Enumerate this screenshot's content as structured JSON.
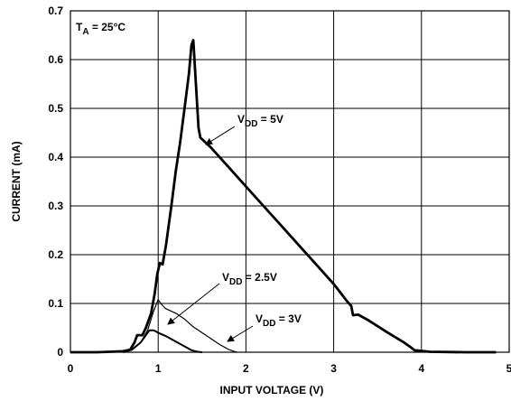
{
  "chart_data": {
    "type": "line",
    "title": "",
    "xlabel": "INPUT VOLTAGE (V)",
    "ylabel": "CURRENT (mA)",
    "xlim": [
      0,
      5
    ],
    "ylim": [
      0,
      0.7
    ],
    "x_ticks": [
      "0",
      "1",
      "2",
      "3",
      "4",
      "5"
    ],
    "y_ticks": [
      "0",
      "0.1",
      "0.2",
      "0.3",
      "0.4",
      "0.5",
      "0.6",
      "0.7"
    ],
    "grid": true,
    "condition_label": {
      "main": "T",
      "sub": "A",
      "rest": " = 25°C"
    },
    "series": [
      {
        "name": "VDD = 5V",
        "label": {
          "main": "V",
          "sub": "DD",
          "rest": " = 5V"
        },
        "stroke": "thick",
        "points": [
          [
            0,
            0
          ],
          [
            0.3,
            0
          ],
          [
            0.6,
            0.002
          ],
          [
            0.68,
            0.005
          ],
          [
            0.73,
            0.02
          ],
          [
            0.76,
            0.035
          ],
          [
            0.82,
            0.035
          ],
          [
            0.86,
            0.05
          ],
          [
            0.92,
            0.08
          ],
          [
            0.96,
            0.12
          ],
          [
            0.99,
            0.16
          ],
          [
            1.02,
            0.183
          ],
          [
            1.05,
            0.18
          ],
          [
            1.09,
            0.22
          ],
          [
            1.15,
            0.3
          ],
          [
            1.2,
            0.37
          ],
          [
            1.25,
            0.43
          ],
          [
            1.3,
            0.5
          ],
          [
            1.35,
            0.57
          ],
          [
            1.38,
            0.63
          ],
          [
            1.4,
            0.64
          ],
          [
            1.43,
            0.55
          ],
          [
            1.46,
            0.46
          ],
          [
            1.48,
            0.44
          ],
          [
            1.6,
            0.42
          ],
          [
            1.8,
            0.38
          ],
          [
            2.0,
            0.34
          ],
          [
            2.2,
            0.3
          ],
          [
            2.4,
            0.26
          ],
          [
            2.6,
            0.22
          ],
          [
            2.8,
            0.18
          ],
          [
            3.0,
            0.14
          ],
          [
            3.15,
            0.105
          ],
          [
            3.2,
            0.095
          ],
          [
            3.22,
            0.076
          ],
          [
            3.28,
            0.077
          ],
          [
            3.4,
            0.065
          ],
          [
            3.6,
            0.042
          ],
          [
            3.8,
            0.02
          ],
          [
            3.88,
            0.01
          ],
          [
            3.92,
            0.004
          ],
          [
            4.1,
            0.001
          ],
          [
            4.5,
            0
          ],
          [
            4.85,
            0
          ]
        ]
      },
      {
        "name": "VDD = 2.5V",
        "label": {
          "main": "V",
          "sub": "DD",
          "rest": " = 2.5V"
        },
        "stroke": "thin",
        "points": [
          [
            0.6,
            0
          ],
          [
            0.7,
            0.005
          ],
          [
            0.8,
            0.02
          ],
          [
            0.88,
            0.045
          ],
          [
            0.95,
            0.085
          ],
          [
            1.0,
            0.108
          ],
          [
            1.03,
            0.1
          ],
          [
            1.08,
            0.09
          ],
          [
            1.2,
            0.08
          ],
          [
            1.3,
            0.068
          ],
          [
            1.4,
            0.052
          ],
          [
            1.5,
            0.04
          ],
          [
            1.6,
            0.028
          ],
          [
            1.7,
            0.016
          ],
          [
            1.8,
            0.006
          ],
          [
            1.86,
            0.002
          ],
          [
            1.9,
            0
          ]
        ]
      },
      {
        "name": "VDD = 3V",
        "label": {
          "main": "V",
          "sub": "DD",
          "rest": " = 3V"
        },
        "stroke": "medium",
        "points": [
          [
            0.6,
            0
          ],
          [
            0.7,
            0.005
          ],
          [
            0.8,
            0.02
          ],
          [
            0.9,
            0.045
          ],
          [
            0.95,
            0.045
          ],
          [
            1.0,
            0.04
          ],
          [
            1.1,
            0.032
          ],
          [
            1.2,
            0.022
          ],
          [
            1.3,
            0.012
          ],
          [
            1.38,
            0.004
          ],
          [
            1.45,
            0.001
          ],
          [
            1.5,
            0
          ]
        ]
      }
    ]
  }
}
